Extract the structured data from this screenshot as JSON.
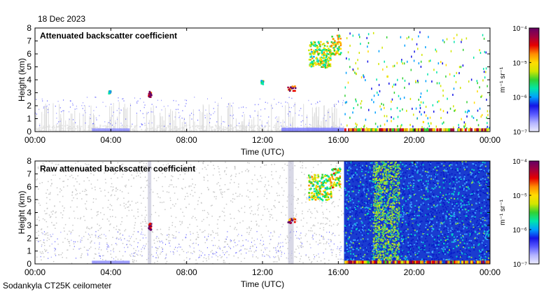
{
  "date": "18 Dec 2023",
  "footer": "Sodankyla CT25K ceilometer",
  "colors": {
    "background_fill": "#e6e6e6",
    "low_signal": "#3c3cff",
    "colormap": [
      "#ececff",
      "#b4b4ff",
      "#5a5aff",
      "#1414e6",
      "#00a0ff",
      "#00e6aa",
      "#32d232",
      "#d2e600",
      "#ffdc00",
      "#ff8c00",
      "#e60000",
      "#a00040",
      "#640064"
    ]
  },
  "chart_data": [
    {
      "type": "heatmap",
      "title": "Attenuated backscatter coefficient",
      "xlabel": "Time (UTC)",
      "ylabel": "Height (km)",
      "x_ticks": [
        "00:00",
        "04:00",
        "08:00",
        "12:00",
        "16:00",
        "20:00",
        "00:00"
      ],
      "x_range_hours": [
        0,
        24
      ],
      "y_ticks": [
        "0",
        "1",
        "2",
        "3",
        "4",
        "5",
        "6",
        "7",
        "8"
      ],
      "ylim": [
        0,
        8
      ],
      "colorbar": {
        "unit": "m⁻¹ sr⁻¹",
        "ticks": [
          "10⁻⁴",
          "10⁻⁵",
          "10⁻⁶",
          "10⁻⁷"
        ],
        "scale": "log",
        "range_exponent": [
          -7,
          -4
        ]
      },
      "features": {
        "noise_layer_hours": [
          0,
          16.3
        ],
        "noise_layer_top_km": 2.3,
        "cloud_bands": [
          {
            "t0": 14.4,
            "t1": 15.6,
            "h0": 5.0,
            "h1": 7.0,
            "level": 0.55
          },
          {
            "t0": 15.6,
            "t1": 16.1,
            "h0": 6.0,
            "h1": 7.5,
            "level": 0.6
          },
          {
            "t0": 13.3,
            "t1": 13.7,
            "h0": 3.2,
            "h1": 3.6,
            "level": 0.85
          },
          {
            "t0": 5.95,
            "t1": 6.1,
            "h0": 2.7,
            "h1": 3.2,
            "level": 0.9
          },
          {
            "t0": 11.9,
            "t1": 12.0,
            "h0": 3.7,
            "h1": 4.0,
            "level": 0.45
          },
          {
            "t0": 3.85,
            "t1": 3.95,
            "h0": 3.0,
            "h1": 3.2,
            "level": 0.45
          }
        ],
        "surface_layer_hours": [
          16.3,
          24
        ],
        "scattered_hours": [
          16.3,
          24
        ]
      }
    },
    {
      "type": "heatmap",
      "title": "Raw attenuated backscatter coefficient",
      "xlabel": "Time (UTC)",
      "ylabel": "Height (km)",
      "x_ticks": [
        "00:00",
        "04:00",
        "08:00",
        "12:00",
        "16:00",
        "20:00",
        "00:00"
      ],
      "x_range_hours": [
        0,
        24
      ],
      "y_ticks": [
        "0",
        "1",
        "2",
        "3",
        "4",
        "5",
        "6",
        "7",
        "8"
      ],
      "ylim": [
        0,
        8
      ],
      "colorbar": {
        "unit": "m⁻¹ sr⁻¹",
        "ticks": [
          "10⁻⁴",
          "10⁻⁵",
          "10⁻⁶",
          "10⁻⁷"
        ],
        "scale": "log",
        "range_exponent": [
          -7,
          -4
        ]
      },
      "features": {
        "noise_hours": [
          0,
          16.3
        ],
        "noisy_block_hours": [
          16.3,
          24
        ],
        "bright_block_hours": [
          17.8,
          19.2
        ],
        "cloud_bands": [
          {
            "t0": 14.4,
            "t1": 15.6,
            "h0": 5.0,
            "h1": 7.0,
            "level": 0.55
          },
          {
            "t0": 15.6,
            "t1": 16.1,
            "h0": 6.0,
            "h1": 7.5,
            "level": 0.6
          },
          {
            "t0": 13.3,
            "t1": 13.7,
            "h0": 3.2,
            "h1": 3.6,
            "level": 0.85
          },
          {
            "t0": 5.95,
            "t1": 6.1,
            "h0": 2.7,
            "h1": 3.2,
            "level": 0.9
          }
        ]
      }
    }
  ]
}
